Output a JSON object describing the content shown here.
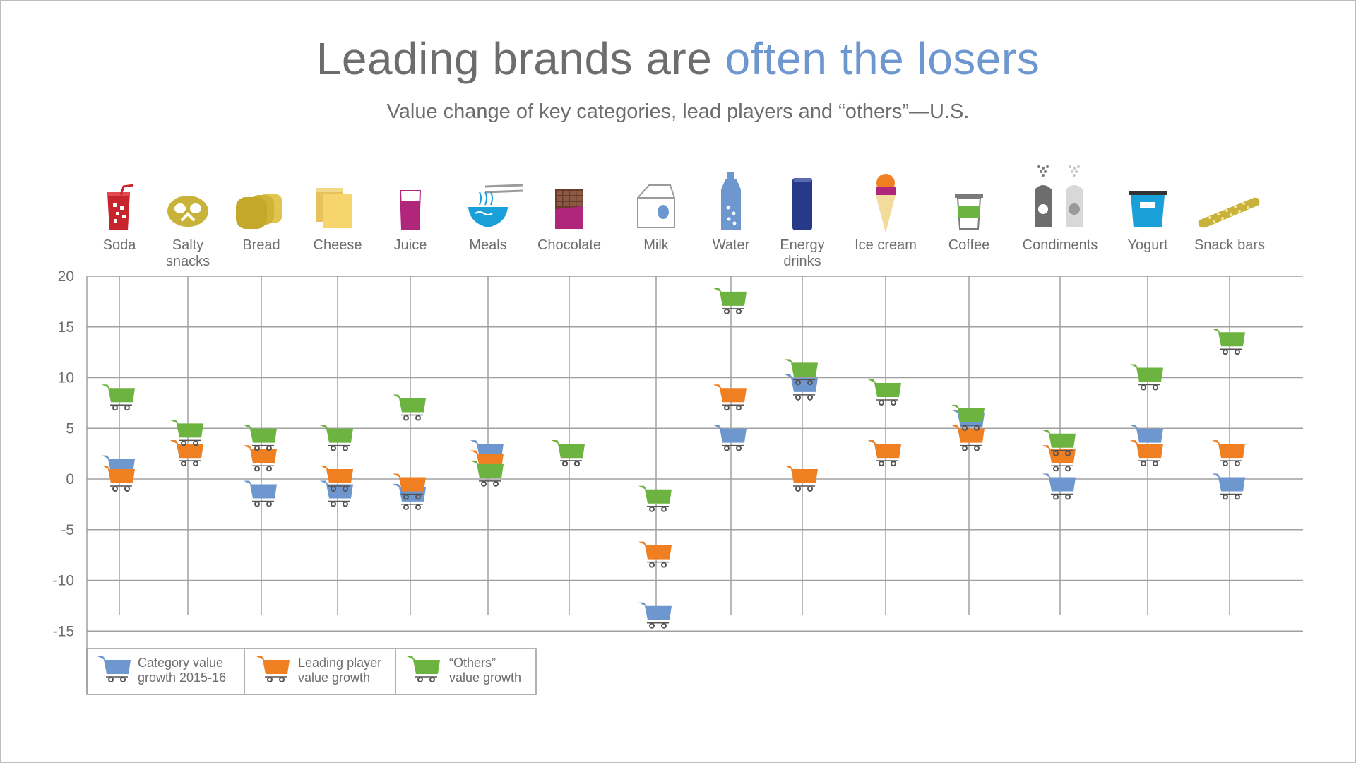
{
  "title": {
    "part1": "Leading brands are ",
    "part2": "often the losers"
  },
  "subtitle": "Value change of key categories, lead players and “others”—U.S.",
  "colors": {
    "category": "#6f97cf",
    "leader": "#f07f22",
    "others": "#6db33f",
    "grid": "#a0a0a0",
    "text": "#6d6d6d"
  },
  "chart_data": {
    "type": "scatter",
    "title": "Leading brands are often the losers",
    "subtitle": "Value change of key categories, lead players and “others”—U.S.",
    "categories": [
      {
        "name": "Soda",
        "label_lines": [
          "Soda"
        ],
        "icon": "soda-cup-icon"
      },
      {
        "name": "Salty snacks",
        "label_lines": [
          "Salty",
          "snacks"
        ],
        "icon": "pretzel-icon"
      },
      {
        "name": "Bread",
        "label_lines": [
          "Bread"
        ],
        "icon": "bread-icon"
      },
      {
        "name": "Cheese",
        "label_lines": [
          "Cheese"
        ],
        "icon": "cheese-icon"
      },
      {
        "name": "Juice",
        "label_lines": [
          "Juice"
        ],
        "icon": "juice-glass-icon"
      },
      {
        "name": "Meals",
        "label_lines": [
          "Meals"
        ],
        "icon": "noodle-bowl-icon"
      },
      {
        "name": "Chocolate",
        "label_lines": [
          "Chocolate"
        ],
        "icon": "chocolate-bar-icon"
      },
      {
        "name": "Milk",
        "label_lines": [
          "Milk"
        ],
        "icon": "milk-carton-icon"
      },
      {
        "name": "Water",
        "label_lines": [
          "Water"
        ],
        "icon": "water-bottle-icon"
      },
      {
        "name": "Energy drinks",
        "label_lines": [
          "Energy",
          "drinks"
        ],
        "icon": "energy-can-icon"
      },
      {
        "name": "Ice cream",
        "label_lines": [
          "Ice cream"
        ],
        "icon": "ice-cream-cone-icon"
      },
      {
        "name": "Coffee",
        "label_lines": [
          "Coffee"
        ],
        "icon": "coffee-cup-icon"
      },
      {
        "name": "Condiments",
        "label_lines": [
          "Condiments"
        ],
        "icon": "salt-pepper-icon"
      },
      {
        "name": "Yogurt",
        "label_lines": [
          "Yogurt"
        ],
        "icon": "yogurt-cup-icon"
      },
      {
        "name": "Snack bars",
        "label_lines": [
          "Snack bars"
        ],
        "icon": "snack-bar-icon"
      }
    ],
    "series": [
      {
        "key": "category",
        "legend_lines": [
          "Category value",
          "growth 2015-16"
        ],
        "color": "#6f97cf",
        "values": [
          1,
          2.5,
          -1.5,
          -1.5,
          -1.8,
          2.5,
          2.5,
          -13.5,
          4,
          9,
          2.5,
          5.5,
          -0.8,
          4,
          -0.8
        ]
      },
      {
        "key": "leader",
        "legend_lines": [
          "Leading player",
          "value growth"
        ],
        "color": "#f07f22",
        "values": [
          0,
          2.5,
          2,
          0,
          -0.8,
          1.5,
          2.5,
          -7.5,
          8,
          0,
          2.5,
          4,
          2,
          2.5,
          2.5
        ]
      },
      {
        "key": "others",
        "legend_lines": [
          "“Others”",
          "value growth"
        ],
        "color": "#6db33f",
        "values": [
          8,
          4.5,
          4,
          4,
          7,
          0.5,
          2.5,
          -2,
          17.5,
          10.5,
          8.5,
          6,
          3.5,
          10,
          13.5
        ]
      }
    ],
    "yticks": [
      20,
      15,
      10,
      5,
      0,
      -5,
      -10,
      -15
    ],
    "ylim": [
      -17,
      20
    ],
    "grid": true,
    "legend": "bottom-left"
  }
}
